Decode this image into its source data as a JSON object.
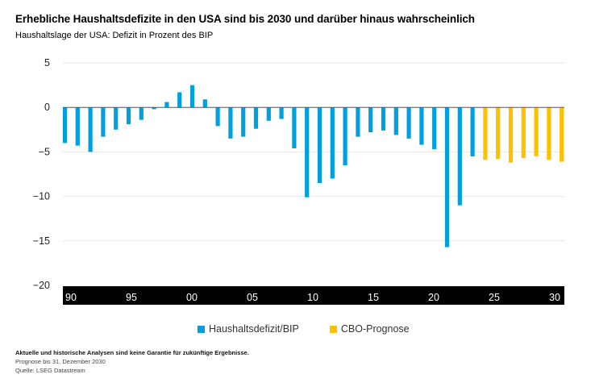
{
  "title": "Erhebliche Haushaltsdefizite in den USA sind bis 2030 und darüber hinaus wahrscheinlich",
  "subtitle": "Haushaltslage der USA: Defizit in Prozent des BIP",
  "footer": {
    "disclaimer": "Aktuelle und historische Analysen sind keine Garantie für zukünftige Ergebnisse.",
    "forecast_note": "Prognose bis 31. Dezember 2030",
    "source": "Quelle: LSEG Datastream"
  },
  "chart_data": {
    "type": "bar",
    "title": "Haushaltslage der USA: Defizit in Prozent des BIP",
    "xlabel": "",
    "ylabel": "",
    "ylim": [
      -20,
      5
    ],
    "yticks": [
      5,
      0,
      -5,
      -10,
      -15,
      -20
    ],
    "ytick_labels": [
      "5",
      "0",
      "−5",
      "−10",
      "−15",
      "−20"
    ],
    "xtick_labels": [
      {
        "year": 1990,
        "label": "90"
      },
      {
        "year": 1995,
        "label": "95"
      },
      {
        "year": 2000,
        "label": "00"
      },
      {
        "year": 2005,
        "label": "05"
      },
      {
        "year": 2010,
        "label": "10"
      },
      {
        "year": 2015,
        "label": "15"
      },
      {
        "year": 2020,
        "label": "20"
      },
      {
        "year": 2025,
        "label": "25"
      },
      {
        "year": 2030,
        "label": "30"
      }
    ],
    "grid": true,
    "legend_position": "bottom",
    "series": [
      {
        "name": "Haushaltsdefizit/BIP",
        "color": "#009fdf",
        "x": [
          1990,
          1991,
          1992,
          1993,
          1994,
          1995,
          1996,
          1997,
          1998,
          1999,
          2000,
          2001,
          2002,
          2003,
          2004,
          2005,
          2006,
          2007,
          2008,
          2009,
          2010,
          2011,
          2012,
          2013,
          2014,
          2015,
          2016,
          2017,
          2018,
          2019,
          2020,
          2021,
          2022
        ],
        "values": [
          -4.0,
          -4.3,
          -5.0,
          -3.3,
          -2.5,
          -1.9,
          -1.4,
          -0.2,
          0.6,
          1.7,
          2.5,
          0.9,
          -2.1,
          -3.5,
          -3.3,
          -2.4,
          -1.5,
          -1.3,
          -4.6,
          -10.1,
          -8.5,
          -8.0,
          -6.5,
          -3.3,
          -2.8,
          -2.6,
          -3.1,
          -3.5,
          -4.2,
          -4.7,
          -15.7,
          -11.0,
          -5.5
        ]
      },
      {
        "name": "CBO-Prognose",
        "color": "#ffc000",
        "x": [
          2023,
          2024,
          2025,
          2026,
          2027,
          2028,
          2029
        ],
        "values": [
          -5.9,
          -5.8,
          -6.2,
          -5.7,
          -5.5,
          -5.9,
          -6.1
        ]
      }
    ]
  }
}
